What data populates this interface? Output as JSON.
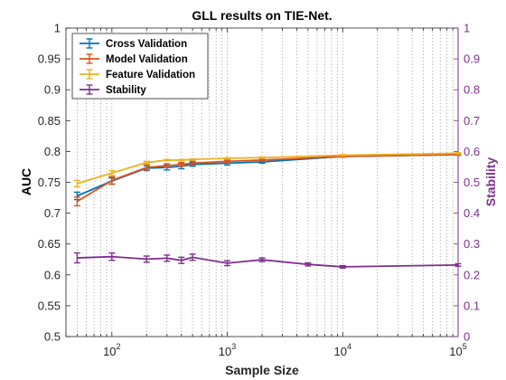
{
  "chart_data": {
    "type": "line",
    "title": "GLL results on TIE-Net.",
    "xlabel": "Sample Size",
    "ylabel_left": "AUC",
    "ylabel_right": "Stability",
    "xscale": "log",
    "xlim": [
      40,
      100000
    ],
    "ylim_left": [
      0.5,
      1
    ],
    "ylim_right": [
      0,
      1
    ],
    "x_ticks": [
      100,
      1000,
      10000,
      100000
    ],
    "x_tick_labels": [
      {
        "base": "10",
        "exp": "2"
      },
      {
        "base": "10",
        "exp": "3"
      },
      {
        "base": "10",
        "exp": "4"
      },
      {
        "base": "10",
        "exp": "5"
      }
    ],
    "y_left_ticks": [
      "0.5",
      "0.55",
      "0.6",
      "0.65",
      "0.7",
      "0.75",
      "0.8",
      "0.85",
      "0.9",
      "0.95",
      "1"
    ],
    "y_right_ticks": [
      "0",
      "0.1",
      "0.2",
      "0.3",
      "0.4",
      "0.5",
      "0.6",
      "0.7",
      "0.8",
      "0.9",
      "1"
    ],
    "grid": "x-major-and-minor-dotted",
    "legend_position": "top-left",
    "series": [
      {
        "name": "Cross Validation",
        "axis": "left",
        "color": "#0072BD",
        "x": [
          50,
          100,
          200,
          300,
          400,
          500,
          1000,
          2000,
          10000,
          100000
        ],
        "y": [
          0.728,
          0.752,
          0.773,
          0.774,
          0.776,
          0.779,
          0.781,
          0.783,
          0.792,
          0.795
        ],
        "err": [
          0.006,
          0.005,
          0.004,
          0.004,
          0.004,
          0.003,
          0.003,
          0.002,
          0.001,
          0.001
        ]
      },
      {
        "name": "Model Validation",
        "axis": "left",
        "color": "#D95319",
        "x": [
          50,
          100,
          200,
          300,
          400,
          500,
          1000,
          2000,
          10000,
          100000
        ],
        "y": [
          0.719,
          0.753,
          0.774,
          0.777,
          0.779,
          0.781,
          0.784,
          0.786,
          0.792,
          0.795
        ],
        "err": [
          0.007,
          0.006,
          0.004,
          0.003,
          0.003,
          0.003,
          0.002,
          0.002,
          0.001,
          0.001
        ]
      },
      {
        "name": "Feature Validation",
        "axis": "left",
        "color": "#EDB120",
        "x": [
          50,
          100,
          200,
          300,
          400,
          500,
          1000,
          2000,
          10000,
          100000
        ],
        "y": [
          0.748,
          0.765,
          0.782,
          0.786,
          0.786,
          0.787,
          0.789,
          0.79,
          0.794,
          0.797
        ],
        "err": [
          0.005,
          0.004,
          0.002,
          0.001,
          0.001,
          0.001,
          0.001,
          0.001,
          0.001,
          0.001
        ]
      },
      {
        "name": "Stability",
        "axis": "right",
        "color": "#7E2F8E",
        "x": [
          50,
          100,
          200,
          300,
          400,
          500,
          1000,
          2000,
          5000,
          10000,
          100000
        ],
        "y": [
          0.255,
          0.259,
          0.251,
          0.254,
          0.247,
          0.257,
          0.238,
          0.249,
          0.234,
          0.226,
          0.232
        ],
        "err": [
          0.016,
          0.012,
          0.01,
          0.01,
          0.01,
          0.01,
          0.008,
          0.006,
          0.005,
          0.004,
          0.004
        ]
      }
    ]
  }
}
